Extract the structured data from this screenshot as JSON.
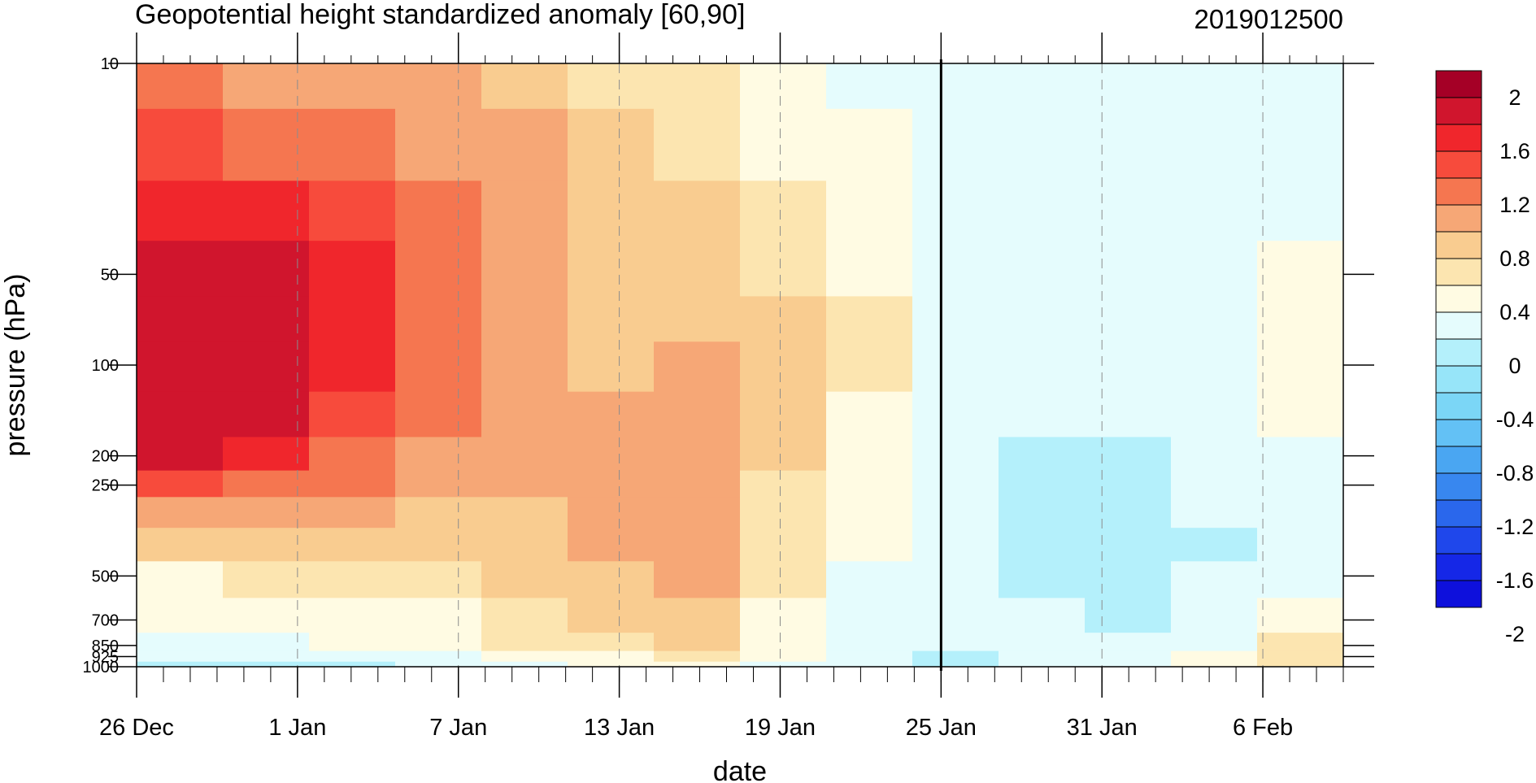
{
  "chart_data": {
    "type": "heatmap",
    "title": "Geopotential height standardized anomaly [60,90]",
    "subtitle": "2019012500",
    "xlabel": "date",
    "ylabel": "pressure (hPa)",
    "x_start": "2018-12-26",
    "x_end": "2019-02-09",
    "x_tick_labels": [
      "26 Dec",
      "1 Jan",
      "7 Jan",
      "13 Jan",
      "19 Jan",
      "25 Jan",
      "31 Jan",
      "6 Feb"
    ],
    "x_tick_dates": [
      "2018-12-26",
      "2019-01-01",
      "2019-01-07",
      "2019-01-13",
      "2019-01-19",
      "2019-01-25",
      "2019-01-31",
      "2019-02-06"
    ],
    "marker_date": "2019-01-25",
    "y_scale": "log",
    "y_range": [
      1000,
      10
    ],
    "y_tick_labels": [
      "10",
      "50",
      "100",
      "200",
      "250",
      "500",
      "700",
      "850",
      "925",
      "1000"
    ],
    "y_tick_values": [
      10,
      50,
      100,
      200,
      250,
      500,
      700,
      850,
      925,
      1000
    ],
    "colorbar_labels": [
      "2",
      "1.6",
      "1.2",
      "0.8",
      "0.4",
      "0",
      "-0.4",
      "-0.8",
      "-1.2",
      "-1.6",
      "-2"
    ],
    "colorbar_colors": [
      "#a50026",
      "#d0152d",
      "#f0262c",
      "#f74b3c",
      "#f57650",
      "#f6a776",
      "#f9cc90",
      "#fce5b0",
      "#fffbe3",
      "#e5fcfd",
      "#b4f0fb",
      "#97e5f9",
      "#7bd6f6",
      "#63c1f5",
      "#4aa6f2",
      "#3887ef",
      "#2a67ec",
      "#1f47eb",
      "#1527e7",
      "#0e10dc"
    ],
    "pressure_levels": [
      10,
      20,
      30,
      50,
      70,
      100,
      150,
      200,
      250,
      300,
      400,
      500,
      700,
      850,
      925,
      1000
    ],
    "values": [
      [
        1.1,
        1.3,
        1.5,
        1.7,
        1.75,
        1.75,
        1.75,
        1.6,
        1.35,
        1.0,
        0.65,
        0.4,
        0.3,
        0.2,
        0.05,
        -0.1
      ],
      [
        1.0,
        1.2,
        1.45,
        1.6,
        1.7,
        1.7,
        1.6,
        1.45,
        1.2,
        0.95,
        0.7,
        0.45,
        0.35,
        0.2,
        0.1,
        -0.05
      ],
      [
        0.9,
        1.1,
        1.3,
        1.45,
        1.5,
        1.45,
        1.35,
        1.2,
        1.05,
        0.85,
        0.7,
        0.5,
        0.4,
        0.3,
        0.15,
        0.0
      ],
      [
        0.85,
        1.0,
        1.1,
        1.2,
        1.2,
        1.2,
        1.1,
        1.0,
        0.9,
        0.75,
        0.65,
        0.5,
        0.4,
        0.3,
        0.2,
        0.05
      ],
      [
        0.7,
        0.8,
        0.9,
        0.95,
        0.95,
        0.9,
        0.85,
        0.8,
        0.8,
        0.75,
        0.75,
        0.7,
        0.55,
        0.45,
        0.3,
        0.1
      ],
      [
        0.55,
        0.6,
        0.65,
        0.7,
        0.75,
        0.75,
        0.8,
        0.85,
        0.85,
        0.85,
        0.8,
        0.75,
        0.65,
        0.5,
        0.4,
        0.25
      ],
      [
        0.45,
        0.5,
        0.6,
        0.65,
        0.7,
        0.8,
        0.85,
        0.9,
        0.9,
        0.9,
        0.85,
        0.8,
        0.7,
        0.6,
        0.5,
        0.35
      ],
      [
        0.35,
        0.4,
        0.45,
        0.55,
        0.7,
        0.75,
        0.7,
        0.6,
        0.55,
        0.5,
        0.45,
        0.45,
        0.4,
        0.35,
        0.3,
        0.2
      ],
      [
        0.2,
        0.25,
        0.3,
        0.4,
        0.45,
        0.45,
        0.4,
        0.35,
        0.3,
        0.3,
        0.25,
        0.2,
        0.2,
        0.15,
        0.1,
        0.05
      ],
      [
        0.1,
        0.1,
        0.15,
        0.2,
        0.2,
        0.2,
        0.15,
        0.15,
        0.1,
        0.1,
        0.05,
        0.05,
        0.05,
        0.05,
        0.0,
        -0.05
      ],
      [
        0.05,
        0.05,
        0.05,
        0.1,
        0.1,
        0.05,
        0.05,
        0.0,
        -0.05,
        -0.05,
        -0.05,
        0.0,
        0.05,
        0.05,
        0.05,
        0.05
      ],
      [
        0.1,
        0.1,
        0.1,
        0.1,
        0.1,
        0.1,
        0.1,
        -0.05,
        -0.1,
        -0.1,
        -0.05,
        -0.05,
        0.0,
        0.05,
        0.05,
        0.05
      ],
      [
        0.1,
        0.15,
        0.15,
        0.2,
        0.2,
        0.2,
        0.15,
        0.1,
        0.05,
        0.05,
        0.0,
        0.05,
        0.1,
        0.2,
        0.25,
        0.3
      ],
      [
        0.15,
        0.2,
        0.2,
        0.25,
        0.3,
        0.3,
        0.25,
        0.2,
        0.15,
        0.1,
        0.1,
        0.15,
        0.3,
        0.45,
        0.5,
        0.55
      ]
    ]
  }
}
